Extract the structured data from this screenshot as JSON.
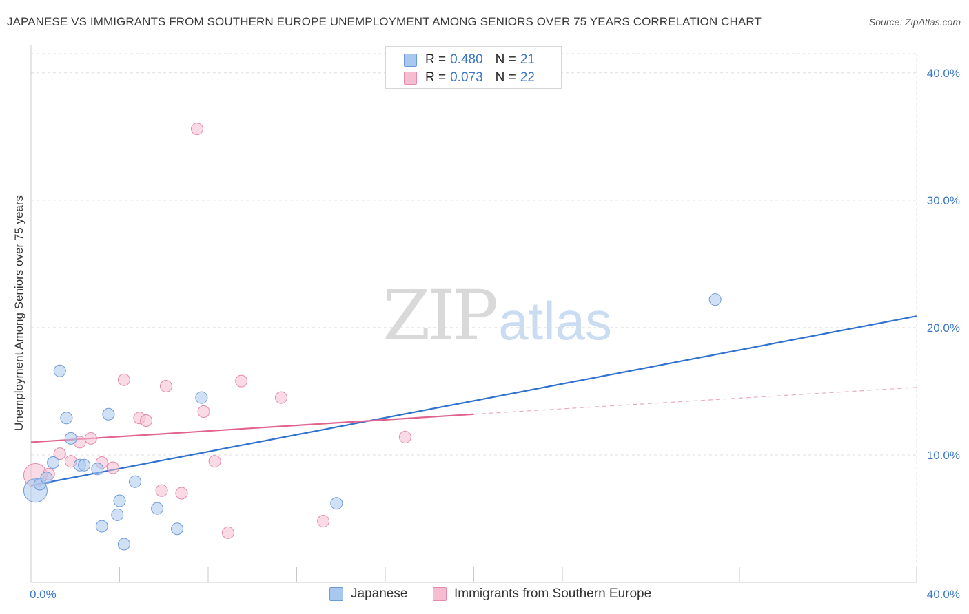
{
  "header": {
    "title": "JAPANESE VS IMMIGRANTS FROM SOUTHERN EUROPE UNEMPLOYMENT AMONG SENIORS OVER 75 YEARS CORRELATION CHART",
    "source": "Source: ZipAtlas.com"
  },
  "watermark": {
    "zip": "ZIP",
    "atlas": "atlas"
  },
  "legend": {
    "rows": [
      {
        "r_label": "R =",
        "r_value": "0.480",
        "n_label": "N =",
        "n_value": "21"
      },
      {
        "r_label": "R =",
        "r_value": "0.073",
        "n_label": "N =",
        "n_value": "22"
      }
    ]
  },
  "bottom_legend": {
    "series_a": "Japanese",
    "series_b": "Immigrants from Southern Europe"
  },
  "colors": {
    "blue_fill": "#a9c8ef",
    "blue_stroke": "#6d9ad6",
    "blue_line": "#2f72cf",
    "pink_fill": "#f6bdd0",
    "pink_stroke": "#e48aaa",
    "pink_line": "#e0648f",
    "grid": "#dddddd",
    "tick_label": "#3b76c8"
  },
  "chart_data": {
    "type": "scatter",
    "title": "JAPANESE VS IMMIGRANTS FROM SOUTHERN EUROPE UNEMPLOYMENT AMONG SENIORS OVER 75 YEARS CORRELATION CHART",
    "xlabel": "",
    "ylabel": "Unemployment Among Seniors over 75 years",
    "xlim": [
      0,
      40
    ],
    "ylim": [
      0,
      41.5
    ],
    "x_tick_labels": [
      "0.0%",
      "40.0%"
    ],
    "y_ticks": [
      10,
      20,
      30,
      40
    ],
    "y_tick_labels": [
      "10.0%",
      "20.0%",
      "30.0%",
      "40.0%"
    ],
    "grid": true,
    "legend_position": "top-center",
    "series": [
      {
        "name": "Japanese",
        "color": "#a9c8ef",
        "points": [
          [
            0.2,
            7.2
          ],
          [
            0.4,
            7.7
          ],
          [
            0.7,
            8.2
          ],
          [
            1.0,
            9.4
          ],
          [
            1.3,
            16.6
          ],
          [
            1.6,
            12.9
          ],
          [
            1.8,
            11.3
          ],
          [
            2.2,
            9.2
          ],
          [
            2.4,
            9.2
          ],
          [
            3.0,
            8.9
          ],
          [
            3.2,
            4.4
          ],
          [
            3.5,
            13.2
          ],
          [
            3.9,
            5.3
          ],
          [
            4.0,
            6.4
          ],
          [
            4.2,
            3.0
          ],
          [
            4.7,
            7.9
          ],
          [
            5.7,
            5.8
          ],
          [
            6.6,
            4.2
          ],
          [
            7.7,
            14.5
          ],
          [
            13.8,
            6.2
          ],
          [
            30.9,
            22.2
          ]
        ],
        "trend": {
          "x": [
            0,
            40
          ],
          "y": [
            7.6,
            20.9
          ]
        }
      },
      {
        "name": "Immigrants from Southern Europe",
        "color": "#f6bdd0",
        "points": [
          [
            0.2,
            8.4
          ],
          [
            0.8,
            8.5
          ],
          [
            1.3,
            10.1
          ],
          [
            1.8,
            9.5
          ],
          [
            2.2,
            11.0
          ],
          [
            2.7,
            11.3
          ],
          [
            3.2,
            9.4
          ],
          [
            3.7,
            9.0
          ],
          [
            4.2,
            15.9
          ],
          [
            4.9,
            12.9
          ],
          [
            5.2,
            12.7
          ],
          [
            5.9,
            7.2
          ],
          [
            6.1,
            15.4
          ],
          [
            6.8,
            7.0
          ],
          [
            7.5,
            35.6
          ],
          [
            7.8,
            13.4
          ],
          [
            8.3,
            9.5
          ],
          [
            8.9,
            3.9
          ],
          [
            9.5,
            15.8
          ],
          [
            11.3,
            14.5
          ],
          [
            13.2,
            4.8
          ],
          [
            16.9,
            11.4
          ]
        ],
        "trend": {
          "x": [
            0,
            20
          ],
          "y": [
            11.0,
            13.2
          ]
        },
        "trend_extension": {
          "x": [
            20,
            40
          ],
          "y": [
            13.2,
            15.3
          ]
        }
      }
    ]
  }
}
